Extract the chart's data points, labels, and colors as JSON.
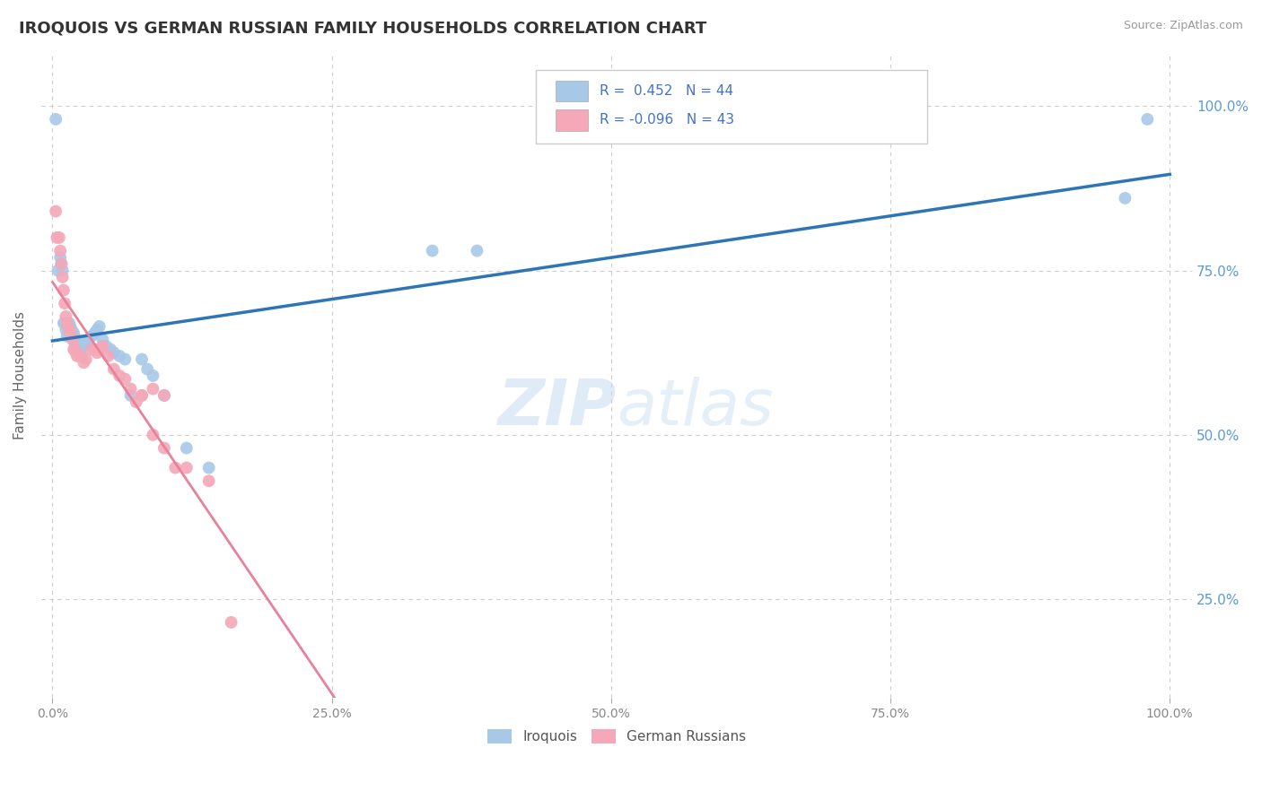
{
  "title": "IROQUOIS VS GERMAN RUSSIAN FAMILY HOUSEHOLDS CORRELATION CHART",
  "source": "Source: ZipAtlas.com",
  "ylabel": "Family Households",
  "iroquois_R": 0.452,
  "iroquois_N": 44,
  "german_russian_R": -0.096,
  "german_russian_N": 43,
  "iroquois_color": "#A8C8E8",
  "german_russian_color": "#F4A8B8",
  "iroquois_line_color": "#2E75B6",
  "german_russian_line_color": "#E8829A",
  "background_color": "#FFFFFF",
  "grid_color": "#CCCCCC",
  "iroquois_x": [
    0.003,
    0.005,
    0.007,
    0.008,
    0.009,
    0.01,
    0.011,
    0.012,
    0.013,
    0.015,
    0.016,
    0.017,
    0.018,
    0.019,
    0.02,
    0.021,
    0.022,
    0.023,
    0.025,
    0.026,
    0.028,
    0.03,
    0.032,
    0.035,
    0.038,
    0.04,
    0.042,
    0.045,
    0.048,
    0.052,
    0.055,
    0.06,
    0.065,
    0.07,
    0.08,
    0.085,
    0.09,
    0.1,
    0.12,
    0.14,
    0.34,
    0.38,
    0.96,
    0.98
  ],
  "iroquois_y": [
    0.98,
    0.75,
    0.77,
    0.76,
    0.75,
    0.67,
    0.67,
    0.66,
    0.65,
    0.67,
    0.665,
    0.66,
    0.655,
    0.655,
    0.64,
    0.645,
    0.645,
    0.64,
    0.63,
    0.62,
    0.635,
    0.64,
    0.645,
    0.65,
    0.655,
    0.66,
    0.665,
    0.645,
    0.635,
    0.63,
    0.625,
    0.62,
    0.615,
    0.56,
    0.615,
    0.6,
    0.59,
    0.56,
    0.48,
    0.45,
    0.78,
    0.78,
    0.86,
    0.98
  ],
  "german_russian_x": [
    0.003,
    0.004,
    0.006,
    0.007,
    0.008,
    0.009,
    0.01,
    0.011,
    0.012,
    0.013,
    0.014,
    0.015,
    0.016,
    0.017,
    0.018,
    0.019,
    0.02,
    0.021,
    0.022,
    0.025,
    0.028,
    0.03,
    0.035,
    0.038,
    0.04,
    0.042,
    0.045,
    0.05,
    0.055,
    0.06,
    0.065,
    0.07,
    0.075,
    0.08,
    0.09,
    0.1,
    0.11,
    0.12,
    0.08,
    0.09,
    0.1,
    0.14,
    0.16
  ],
  "german_russian_y": [
    0.84,
    0.8,
    0.8,
    0.78,
    0.76,
    0.74,
    0.72,
    0.7,
    0.68,
    0.67,
    0.665,
    0.66,
    0.655,
    0.65,
    0.645,
    0.63,
    0.63,
    0.625,
    0.62,
    0.62,
    0.61,
    0.615,
    0.63,
    0.63,
    0.625,
    0.63,
    0.635,
    0.62,
    0.6,
    0.59,
    0.585,
    0.57,
    0.55,
    0.56,
    0.5,
    0.48,
    0.45,
    0.45,
    0.56,
    0.57,
    0.56,
    0.43,
    0.215
  ],
  "ytick_vals": [
    0.25,
    0.5,
    0.75,
    1.0
  ],
  "ytick_labels": [
    "25.0%",
    "50.0%",
    "75.0%",
    "100.0%"
  ],
  "xtick_vals": [
    0.0,
    0.25,
    0.5,
    0.75,
    1.0
  ],
  "xtick_labels": [
    "0.0%",
    "25.0%",
    "50.0%",
    "75.0%",
    "100.0%"
  ],
  "xlim": [
    -0.01,
    1.02
  ],
  "ylim": [
    0.1,
    1.08
  ]
}
